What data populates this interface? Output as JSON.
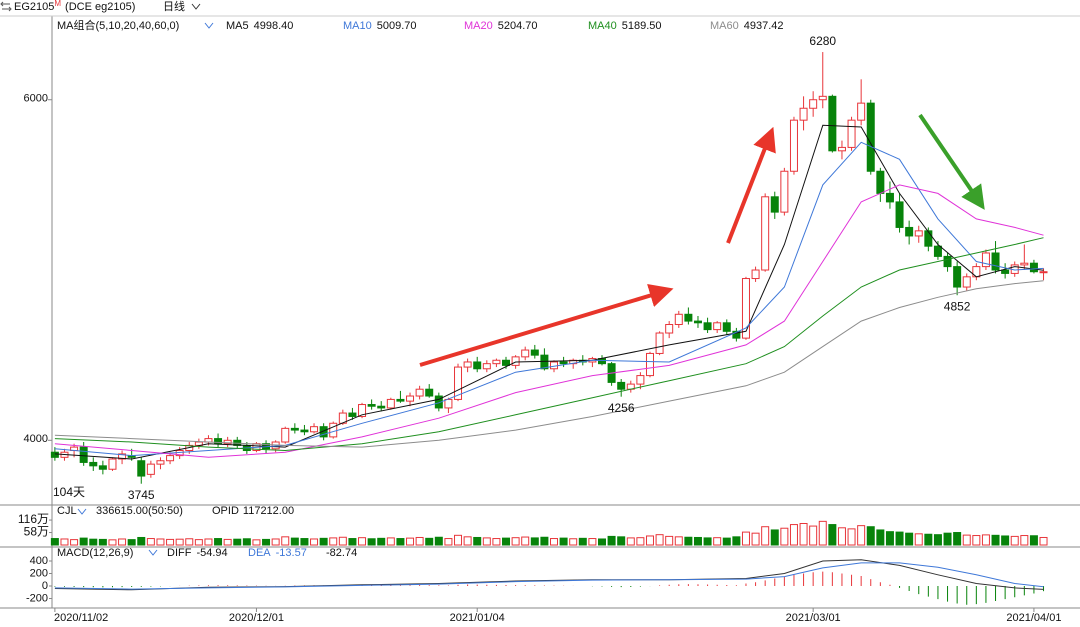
{
  "header": {
    "symbol": "EG2105",
    "symbol_mark": "M",
    "symbol_detail": "(DCE eg2105)",
    "period": "日线"
  },
  "chart_data": [
    {
      "type": "candlestick",
      "legend_title": "MA组合(5,10,20,40,60,0)",
      "days_label": "104天",
      "up_color": "#e8353a",
      "down_color": "#07830a",
      "xlim": [
        -0.3,
        106.8
      ],
      "ylim": [
        3620,
        6480
      ],
      "yticks": [
        4000,
        6000
      ],
      "xticks": [
        {
          "value": 0,
          "label": "2020/11/02"
        },
        {
          "value": 21,
          "label": "2020/12/01"
        },
        {
          "value": 44,
          "label": "2021/01/04"
        },
        {
          "value": 79,
          "label": "2021/03/01"
        },
        {
          "value": 102,
          "label": "2021/04/01"
        }
      ],
      "candles": [
        [
          3930,
          3960,
          3880,
          3900
        ],
        [
          3900,
          3950,
          3880,
          3930
        ],
        [
          3940,
          3980,
          3900,
          3960
        ],
        [
          3960,
          3990,
          3850,
          3870
        ],
        [
          3870,
          3900,
          3820,
          3850
        ],
        [
          3850,
          3880,
          3800,
          3830
        ],
        [
          3830,
          3900,
          3820,
          3890
        ],
        [
          3890,
          3940,
          3860,
          3920
        ],
        [
          3910,
          3950,
          3880,
          3900
        ],
        [
          3880,
          3900,
          3745,
          3790
        ],
        [
          3800,
          3880,
          3780,
          3860
        ],
        [
          3860,
          3900,
          3830,
          3880
        ],
        [
          3880,
          3930,
          3860,
          3910
        ],
        [
          3910,
          3960,
          3890,
          3940
        ],
        [
          3940,
          3990,
          3920,
          3970
        ],
        [
          3970,
          4010,
          3950,
          3990
        ],
        [
          3990,
          4030,
          3970,
          4010
        ],
        [
          4010,
          4040,
          3960,
          3980
        ],
        [
          3980,
          4020,
          3960,
          4000
        ],
        [
          4000,
          4020,
          3950,
          3970
        ],
        [
          3970,
          3990,
          3920,
          3940
        ],
        [
          3940,
          3990,
          3930,
          3980
        ],
        [
          3980,
          4000,
          3920,
          3950
        ],
        [
          3950,
          4000,
          3930,
          3990
        ],
        [
          3990,
          4080,
          3980,
          4070
        ],
        [
          4070,
          4100,
          4040,
          4060
        ],
        [
          4060,
          4090,
          4030,
          4050
        ],
        [
          4050,
          4100,
          4040,
          4080
        ],
        [
          4080,
          4100,
          4000,
          4020
        ],
        [
          4020,
          4110,
          4010,
          4100
        ],
        [
          4100,
          4180,
          4090,
          4160
        ],
        [
          4160,
          4190,
          4120,
          4140
        ],
        [
          4140,
          4220,
          4130,
          4210
        ],
        [
          4210,
          4240,
          4180,
          4200
        ],
        [
          4200,
          4230,
          4170,
          4190
        ],
        [
          4190,
          4250,
          4180,
          4240
        ],
        [
          4240,
          4290,
          4220,
          4230
        ],
        [
          4230,
          4280,
          4200,
          4260
        ],
        [
          4260,
          4320,
          4240,
          4300
        ],
        [
          4300,
          4330,
          4250,
          4260
        ],
        [
          4260,
          4280,
          4170,
          4190
        ],
        [
          4190,
          4250,
          4160,
          4240
        ],
        [
          4240,
          4450,
          4230,
          4430
        ],
        [
          4430,
          4480,
          4400,
          4460
        ],
        [
          4460,
          4490,
          4400,
          4420
        ],
        [
          4420,
          4470,
          4400,
          4450
        ],
        [
          4450,
          4480,
          4430,
          4470
        ],
        [
          4470,
          4490,
          4420,
          4440
        ],
        [
          4440,
          4500,
          4420,
          4490
        ],
        [
          4490,
          4550,
          4470,
          4530
        ],
        [
          4530,
          4560,
          4480,
          4500
        ],
        [
          4500,
          4540,
          4410,
          4420
        ],
        [
          4420,
          4470,
          4400,
          4460
        ],
        [
          4460,
          4490,
          4430,
          4450
        ],
        [
          4450,
          4480,
          4420,
          4470
        ],
        [
          4470,
          4500,
          4440,
          4460
        ],
        [
          4460,
          4490,
          4430,
          4480
        ],
        [
          4480,
          4500,
          4440,
          4450
        ],
        [
          4450,
          4460,
          4320,
          4340
        ],
        [
          4340,
          4360,
          4256,
          4300
        ],
        [
          4300,
          4350,
          4280,
          4330
        ],
        [
          4330,
          4400,
          4300,
          4380
        ],
        [
          4380,
          4520,
          4370,
          4510
        ],
        [
          4510,
          4640,
          4500,
          4630
        ],
        [
          4630,
          4700,
          4600,
          4680
        ],
        [
          4680,
          4760,
          4660,
          4740
        ],
        [
          4740,
          4780,
          4680,
          4700
        ],
        [
          4700,
          4730,
          4660,
          4690
        ],
        [
          4690,
          4720,
          4630,
          4650
        ],
        [
          4650,
          4700,
          4630,
          4690
        ],
        [
          4690,
          4710,
          4620,
          4640
        ],
        [
          4640,
          4660,
          4580,
          4600
        ],
        [
          4600,
          4960,
          4590,
          4950
        ],
        [
          4950,
          5020,
          4930,
          5000
        ],
        [
          5000,
          5450,
          4990,
          5430
        ],
        [
          5430,
          5460,
          5300,
          5340
        ],
        [
          5340,
          5600,
          5320,
          5580
        ],
        [
          5580,
          5900,
          5560,
          5880
        ],
        [
          5880,
          6020,
          5820,
          5950
        ],
        [
          5950,
          6050,
          5900,
          6000
        ],
        [
          6000,
          6280,
          5950,
          6020
        ],
        [
          6020,
          6030,
          5690,
          5700
        ],
        [
          5700,
          5760,
          5650,
          5720
        ],
        [
          5720,
          5900,
          5700,
          5880
        ],
        [
          5880,
          6120,
          5850,
          5980
        ],
        [
          5980,
          6000,
          5560,
          5580
        ],
        [
          5580,
          5600,
          5400,
          5450
        ],
        [
          5450,
          5520,
          5360,
          5400
        ],
        [
          5400,
          5450,
          5220,
          5250
        ],
        [
          5250,
          5290,
          5150,
          5200
        ],
        [
          5200,
          5260,
          5160,
          5230
        ],
        [
          5230,
          5250,
          5110,
          5140
        ],
        [
          5140,
          5170,
          5060,
          5080
        ],
        [
          5080,
          5100,
          4990,
          5020
        ],
        [
          5020,
          5050,
          4852,
          4900
        ],
        [
          4900,
          4980,
          4880,
          4960
        ],
        [
          4960,
          5040,
          4940,
          5020
        ],
        [
          5020,
          5120,
          5000,
          5100
        ],
        [
          5100,
          5170,
          4980,
          5000
        ],
        [
          5000,
          5040,
          4950,
          4980
        ],
        [
          4980,
          5050,
          4960,
          5030
        ],
        [
          5030,
          5150,
          5000,
          5040
        ],
        [
          5040,
          5060,
          4980,
          4990
        ],
        [
          4990,
          5010,
          4940,
          4990
        ]
      ],
      "annotations": [
        {
          "x": 80,
          "value": 6280,
          "color": "#e8353a",
          "side": "top"
        },
        {
          "x": 9,
          "value": 3745,
          "color": "#2a8a2a",
          "side": "bottom"
        },
        {
          "x": 59,
          "value": 4256,
          "color": "#2a8a2a",
          "side": "bottom"
        },
        {
          "x": 94,
          "value": 4852,
          "color": "#2a8a2a",
          "side": "bottom"
        }
      ],
      "lines": [
        {
          "name": "MA5",
          "value_label": "4998.40",
          "color": "#111111",
          "x": [
            0,
            8,
            16,
            24,
            32,
            40,
            48,
            56,
            64,
            72,
            76,
            80,
            84,
            88,
            92,
            96,
            100,
            103
          ],
          "values": [
            3920,
            3890,
            3980,
            3960,
            4150,
            4240,
            4460,
            4470,
            4560,
            4640,
            5150,
            5850,
            5840,
            5450,
            5150,
            4960,
            5020,
            4998.4
          ]
        },
        {
          "name": "MA10",
          "value_label": "5009.70",
          "color": "#3f78d8",
          "x": [
            0,
            8,
            16,
            24,
            32,
            40,
            48,
            56,
            64,
            72,
            76,
            80,
            84,
            88,
            92,
            96,
            100,
            103
          ],
          "values": [
            3950,
            3910,
            3940,
            3970,
            4100,
            4220,
            4400,
            4470,
            4460,
            4660,
            4900,
            5500,
            5750,
            5650,
            5300,
            5050,
            5000,
            5009.7
          ]
        },
        {
          "name": "MA20",
          "value_label": "5204.70",
          "color": "#e033d8",
          "x": [
            0,
            8,
            16,
            24,
            32,
            40,
            48,
            56,
            64,
            72,
            76,
            80,
            84,
            88,
            92,
            96,
            100,
            103
          ],
          "values": [
            3980,
            3940,
            3900,
            3930,
            4020,
            4130,
            4280,
            4380,
            4440,
            4560,
            4700,
            5050,
            5400,
            5500,
            5450,
            5300,
            5250,
            5204.7
          ]
        },
        {
          "name": "MA40",
          "value_label": "5189.50",
          "color": "#1f8f1f",
          "x": [
            0,
            8,
            16,
            24,
            32,
            40,
            48,
            56,
            64,
            72,
            76,
            80,
            84,
            88,
            92,
            96,
            100,
            103
          ],
          "values": [
            4010,
            3990,
            3960,
            3940,
            3980,
            4050,
            4150,
            4250,
            4350,
            4450,
            4550,
            4730,
            4900,
            5000,
            5050,
            5100,
            5150,
            5189.5
          ]
        },
        {
          "name": "MA60",
          "value_label": "4937.42",
          "color": "#8c8c8c",
          "x": [
            0,
            8,
            16,
            24,
            32,
            40,
            48,
            56,
            64,
            72,
            76,
            80,
            84,
            88,
            92,
            96,
            100,
            103
          ],
          "values": [
            4030,
            4010,
            3990,
            3970,
            3960,
            4000,
            4060,
            4140,
            4230,
            4320,
            4400,
            4550,
            4700,
            4780,
            4840,
            4890,
            4920,
            4937.42
          ]
        }
      ]
    },
    {
      "type": "bar",
      "title": "CJL",
      "summary": "336615.00(50:50)",
      "oi_label": "OPID",
      "oi_value": "117212.00",
      "ylim": [
        0,
        186
      ],
      "yticks": [
        {
          "value": 58,
          "label": "58万"
        },
        {
          "value": 116,
          "label": "116万"
        }
      ],
      "values": [
        30,
        28,
        25,
        32,
        27,
        26,
        24,
        28,
        25,
        35,
        30,
        28,
        26,
        27,
        29,
        25,
        28,
        30,
        26,
        27,
        29,
        24,
        26,
        28,
        38,
        32,
        30,
        28,
        31,
        33,
        36,
        30,
        34,
        29,
        31,
        33,
        30,
        32,
        35,
        31,
        36,
        30,
        45,
        38,
        35,
        33,
        30,
        32,
        34,
        37,
        33,
        36,
        30,
        32,
        29,
        31,
        30,
        28,
        40,
        38,
        33,
        34,
        42,
        48,
        40,
        38,
        36,
        35,
        33,
        34,
        32,
        38,
        60,
        55,
        85,
        70,
        78,
        95,
        100,
        88,
        110,
        95,
        80,
        75,
        90,
        85,
        70,
        62,
        60,
        55,
        52,
        50,
        48,
        55,
        58,
        46,
        44,
        47,
        45,
        42,
        40,
        44,
        43,
        35
      ]
    },
    {
      "type": "macd",
      "title": "MACD(12,26,9)",
      "stats": [
        {
          "name": "DIFF",
          "value": "-54.94",
          "color": "#111111"
        },
        {
          "name": "DEA",
          "value": "-13.57",
          "color": "#3f78d8"
        },
        {
          "value": "-82.74",
          "color": "#111111"
        }
      ],
      "ylim": [
        -352,
        624
      ],
      "yticks": [
        400,
        200,
        0,
        -200
      ],
      "histogram": [
        -10,
        -12,
        -15,
        -18,
        -20,
        -22,
        -20,
        -18,
        -16,
        -14,
        -10,
        -6,
        -2,
        2,
        6,
        10,
        12,
        14,
        12,
        10,
        8,
        6,
        4,
        2,
        4,
        8,
        10,
        12,
        10,
        12,
        14,
        16,
        18,
        16,
        14,
        12,
        10,
        12,
        14,
        12,
        10,
        8,
        20,
        24,
        22,
        20,
        18,
        16,
        14,
        12,
        10,
        8,
        6,
        4,
        2,
        0,
        -4,
        -8,
        -14,
        -18,
        -16,
        -10,
        -2,
        10,
        20,
        28,
        30,
        28,
        24,
        20,
        16,
        12,
        40,
        60,
        90,
        120,
        150,
        180,
        200,
        220,
        230,
        220,
        200,
        180,
        160,
        110,
        60,
        20,
        -30,
        -80,
        -130,
        -170,
        -210,
        -250,
        -280,
        -300,
        -290,
        -270,
        -240,
        -210,
        -180,
        -150,
        -120,
        -82.74
      ],
      "lines": [
        {
          "name": "DIFF",
          "color": "#333333",
          "x": [
            0,
            8,
            16,
            24,
            32,
            40,
            48,
            56,
            64,
            72,
            76,
            80,
            84,
            88,
            92,
            96,
            100,
            103
          ],
          "values": [
            -40,
            -60,
            -20,
            -10,
            20,
            40,
            80,
            100,
            100,
            120,
            200,
            400,
            420,
            330,
            180,
            40,
            -30,
            -54.94
          ]
        },
        {
          "name": "DEA",
          "color": "#3f78d8",
          "x": [
            0,
            8,
            16,
            24,
            32,
            40,
            48,
            56,
            64,
            72,
            76,
            80,
            84,
            88,
            92,
            96,
            100,
            103
          ],
          "values": [
            -30,
            -50,
            -30,
            -15,
            10,
            30,
            70,
            95,
            100,
            110,
            150,
            290,
            370,
            370,
            300,
            180,
            40,
            -13.57
          ]
        }
      ]
    }
  ]
}
